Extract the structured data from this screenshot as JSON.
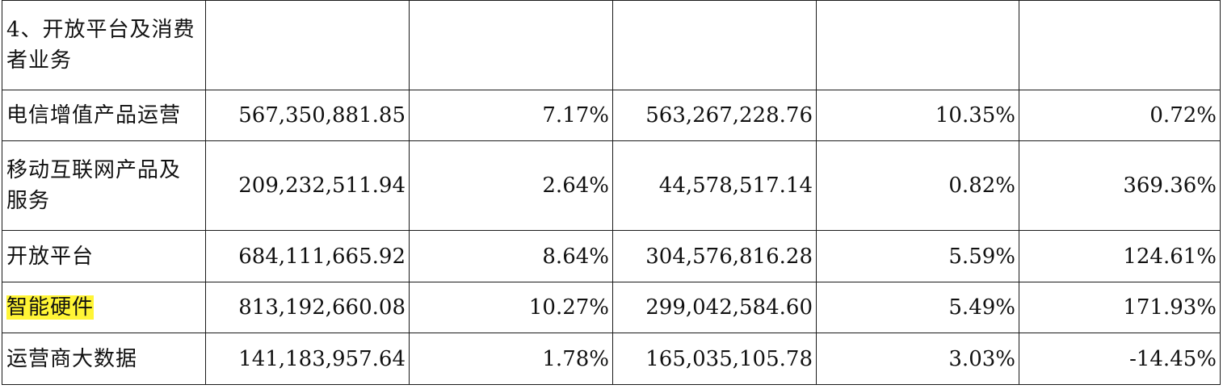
{
  "table": {
    "section_title": "4、开放平台及消费者业务",
    "highlight_color": "#fff536",
    "rows": [
      {
        "label": "电信增值产品运营",
        "amount_current": "567,350,881.85",
        "ratio_current": "7.17%",
        "amount_prior": "563,267,228.76",
        "ratio_prior": "10.35%",
        "change": "0.72%",
        "highlighted": false
      },
      {
        "label": "移动互联网产品及服务",
        "amount_current": "209,232,511.94",
        "ratio_current": "2.64%",
        "amount_prior": "44,578,517.14",
        "ratio_prior": "0.82%",
        "change": "369.36%",
        "highlighted": false
      },
      {
        "label": "开放平台",
        "amount_current": "684,111,665.92",
        "ratio_current": "8.64%",
        "amount_prior": "304,576,816.28",
        "ratio_prior": "5.59%",
        "change": "124.61%",
        "highlighted": false
      },
      {
        "label": "智能硬件",
        "amount_current": "813,192,660.08",
        "ratio_current": "10.27%",
        "amount_prior": "299,042,584.60",
        "ratio_prior": "5.49%",
        "change": "171.93%",
        "highlighted": true
      },
      {
        "label": "运营商大数据",
        "amount_current": "141,183,957.64",
        "ratio_current": "1.78%",
        "amount_prior": "165,035,105.78",
        "ratio_prior": "3.03%",
        "change": "-14.45%",
        "highlighted": false
      }
    ]
  }
}
